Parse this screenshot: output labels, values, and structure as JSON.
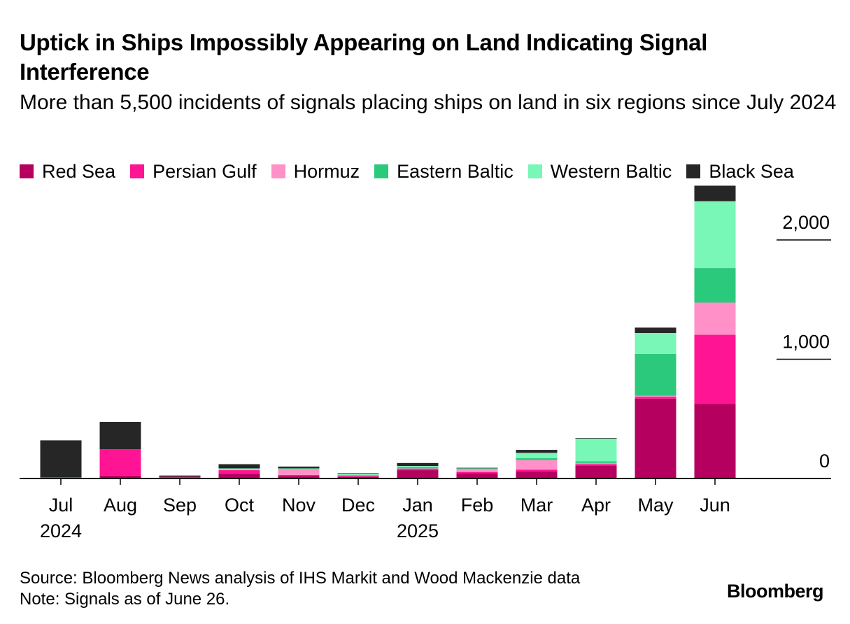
{
  "header": {
    "title": "Uptick in Ships Impossibly Appearing on Land Indicating Signal Interference",
    "subtitle": "More than 5,500 incidents of signals placing ships on land in six regions since July 2024"
  },
  "footer": {
    "source": "Source: Bloomberg News analysis of IHS Markit and Wood Mackenzie data",
    "note": "Note: Signals as of June 26.",
    "brand": "Bloomberg"
  },
  "chart_data": {
    "type": "bar",
    "stacked": true,
    "title": "Uptick in Ships Impossibly Appearing on Land Indicating Signal Interference",
    "subtitle": "More than 5,500 incidents of signals placing ships on land in six regions since July 2024",
    "xlabel": "",
    "ylabel": "",
    "categories": [
      "Jul",
      "Aug",
      "Sep",
      "Oct",
      "Nov",
      "Dec",
      "Jan",
      "Feb",
      "Mar",
      "Apr",
      "May",
      "Jun"
    ],
    "year_labels": [
      "2024",
      "",
      "",
      "",
      "",
      "",
      "2025",
      "",
      "",
      "",
      "",
      ""
    ],
    "ylim": [
      0,
      2450
    ],
    "yticks": [
      0,
      1000,
      2000
    ],
    "ytick_labels": [
      "0",
      "1,000",
      "2,000"
    ],
    "grid": false,
    "legend_position": "top",
    "series": [
      {
        "name": "Red Sea",
        "color": "#b5005f",
        "values": [
          5,
          25,
          10,
          40,
          20,
          15,
          70,
          45,
          60,
          110,
          670,
          625
        ]
      },
      {
        "name": "Persian Gulf",
        "color": "#ff1493",
        "values": [
          5,
          220,
          5,
          30,
          10,
          5,
          10,
          10,
          15,
          10,
          15,
          580
        ]
      },
      {
        "name": "Hormuz",
        "color": "#ff90c8",
        "values": [
          0,
          0,
          0,
          5,
          45,
          5,
          5,
          15,
          80,
          10,
          10,
          270
        ]
      },
      {
        "name": "Eastern Baltic",
        "color": "#2bc97b",
        "values": [
          0,
          0,
          0,
          0,
          5,
          5,
          10,
          5,
          15,
          15,
          350,
          290
        ]
      },
      {
        "name": "Western Baltic",
        "color": "#78f7b6",
        "values": [
          0,
          0,
          0,
          10,
          5,
          10,
          10,
          10,
          45,
          190,
          175,
          560
        ]
      },
      {
        "name": "Black Sea",
        "color": "#262626",
        "values": [
          310,
          230,
          10,
          35,
          15,
          5,
          25,
          5,
          25,
          5,
          45,
          130
        ]
      }
    ]
  }
}
